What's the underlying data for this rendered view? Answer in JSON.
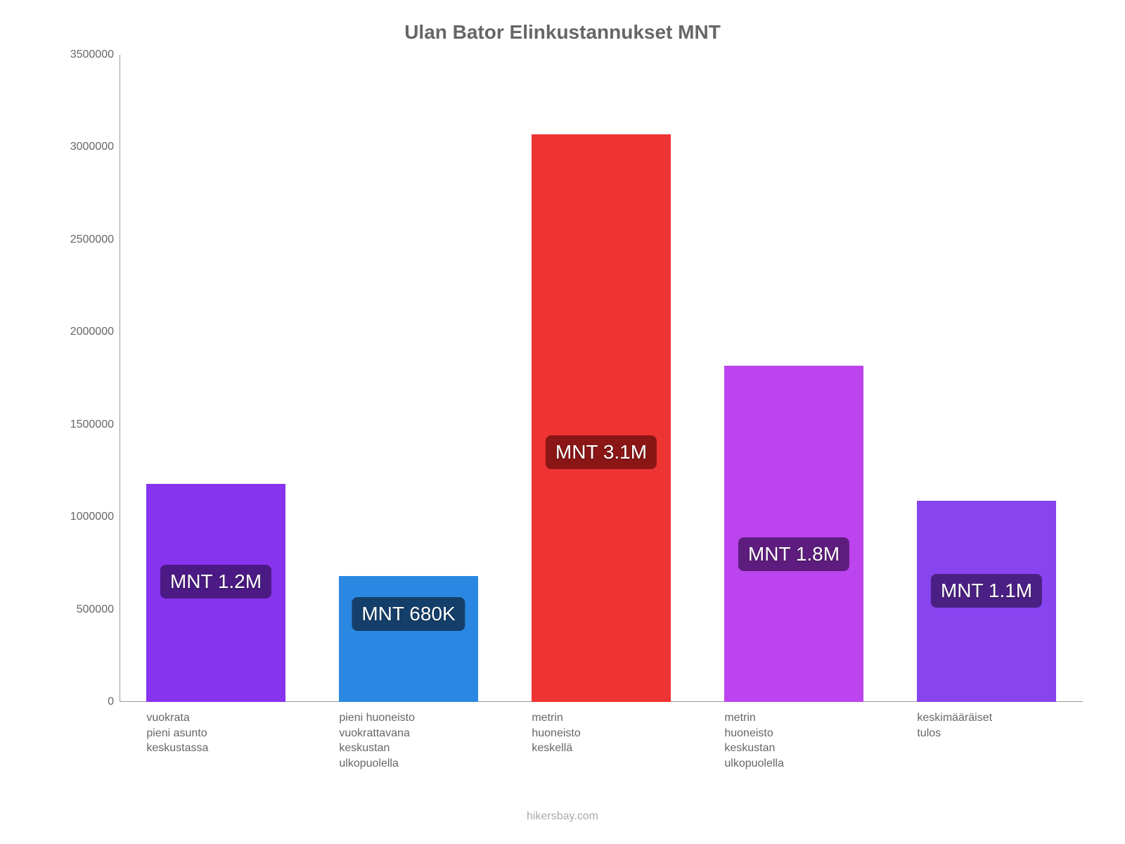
{
  "chart": {
    "type": "bar",
    "title": "Ulan Bator Elinkustannukset MNT",
    "title_fontsize": 28,
    "title_color": "#666666",
    "background_color": "#ffffff",
    "axis_color": "#999999",
    "label_color": "#666666",
    "label_fontsize": 16,
    "ylim": [
      0,
      3500000
    ],
    "ytick_step": 500000,
    "yticks": [
      0,
      500000,
      1000000,
      1500000,
      2000000,
      2500000,
      3000000,
      3500000
    ],
    "bar_width_ratio": 0.72,
    "bars": [
      {
        "category": "vuokrata\npieni asunto\nkeskustassa",
        "value": 1180000,
        "bar_color": "#8833ee",
        "badge_text": "MNT 1.2M",
        "badge_bg": "#4b1a84",
        "badge_position": 0.55
      },
      {
        "category": "pieni huoneisto\nvuokrattavana\nkeskustan\nulkopuolella",
        "value": 680000,
        "bar_color": "#2b88e2",
        "badge_text": "MNT 680K",
        "badge_bg": "#153f6b",
        "badge_position": 0.7
      },
      {
        "category": "metrin\nhuoneisto\nkeskellä",
        "value": 3070000,
        "bar_color": "#ee3333",
        "badge_text": "MNT 3.1M",
        "badge_bg": "#8a1616",
        "badge_position": 0.44
      },
      {
        "category": "metrin\nhuoneisto\nkeskustan\nulkopuolella",
        "value": 1820000,
        "bar_color": "#bb44ee",
        "badge_text": "MNT 1.8M",
        "badge_bg": "#5e1d7e",
        "badge_position": 0.44
      },
      {
        "category": "keskimääräiset\ntulos",
        "value": 1090000,
        "bar_color": "#8844ee",
        "badge_text": "MNT 1.1M",
        "badge_bg": "#4b2084",
        "badge_position": 0.55
      }
    ],
    "attribution": "hikersbay.com",
    "attribution_color": "#aaaaaa"
  }
}
